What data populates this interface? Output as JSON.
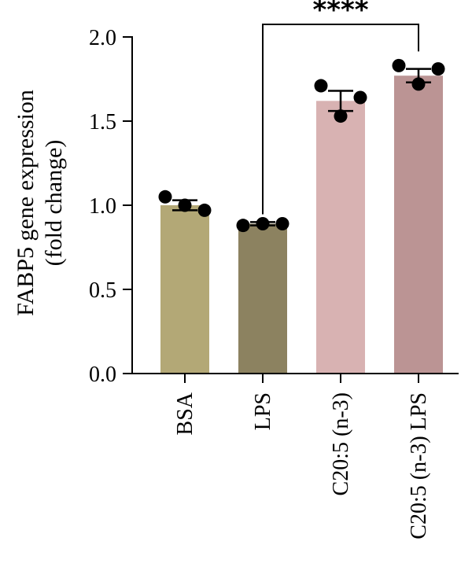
{
  "chart_data": {
    "type": "bar",
    "title": "",
    "ylabel_line1": "FABP5 gene expression",
    "ylabel_line2": "(fold change)",
    "xlabel": "",
    "ylim": [
      0,
      2.0
    ],
    "yticks": [
      0.0,
      0.5,
      1.0,
      1.5,
      2.0
    ],
    "ytick_labels": [
      "0.0",
      "0.5",
      "1.0",
      "1.5",
      "2.0"
    ],
    "grid": false,
    "categories": [
      "BSA",
      "LPS",
      "C20:5 (n-3)",
      "C20:5 (n-3) LPS"
    ],
    "values": [
      1.0,
      0.89,
      1.62,
      1.77
    ],
    "errors": [
      0.03,
      0.01,
      0.06,
      0.04
    ],
    "points": [
      [
        1.05,
        0.97,
        1.0
      ],
      [
        0.88,
        0.89,
        0.89
      ],
      [
        1.71,
        1.64,
        1.53
      ],
      [
        1.83,
        1.81,
        1.72
      ]
    ],
    "colors": [
      "#b3a876",
      "#8c8260",
      "#d8b2b2",
      "#bb9494"
    ],
    "significance": {
      "from": 1,
      "to": 3,
      "label": "****"
    }
  }
}
